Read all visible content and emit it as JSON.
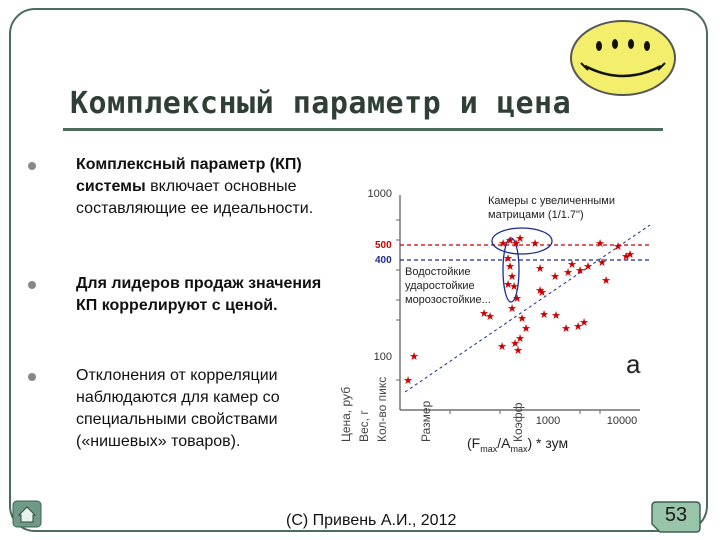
{
  "slide": {
    "title": "Комплексный параметр и цена",
    "bullets": [
      {
        "bold": "Комплексный параметр (КП) системы",
        "rest": " включает основные составляющие ее идеальности."
      },
      {
        "bold": "Для лидеров продаж значения КП коррелируют с ценой.",
        "rest": ""
      },
      {
        "bold": "",
        "rest": "Отклонения от корреляции наблюдаются для камер со специальными свойствами («нишевых» товаров)."
      }
    ],
    "footer": "(С) Привень А.И., 2012",
    "page_number": "53",
    "icons": {
      "home": "home-icon",
      "smiley": "smiley-icon"
    }
  },
  "chart_data": {
    "type": "scatter",
    "x_scale": "log",
    "y_scale": "log",
    "y_tick_labels": [
      "1000",
      "100"
    ],
    "y_ticks": [
      1000,
      100
    ],
    "x_tick_labels": [
      "1000",
      "10000"
    ],
    "x_ticks": [
      1000,
      10000
    ],
    "xlabel_parts": {
      "main": "(F",
      "sub1": "max",
      "mid": "/A",
      "sub2": "max",
      "end": ") * зум"
    },
    "ref_lines": [
      {
        "label": "500",
        "value": 500,
        "color": "#cc0000"
      },
      {
        "label": "400",
        "value": 400,
        "color": "#1a2c8c"
      }
    ],
    "annotations": {
      "cameras": [
        "Камеры с увеличенными",
        "матрицами (1/1.7\")"
      ],
      "waterproof": [
        "Водостойкие",
        "ударостойкие",
        "морозостойкие..."
      ],
      "letter": "а"
    },
    "rotated_labels": [
      "Цена, руб",
      "Вес, г",
      "Кол-во пикс",
      "Размер",
      "Коэфф"
    ],
    "grid": false,
    "marker_color": "#cc0000"
  }
}
